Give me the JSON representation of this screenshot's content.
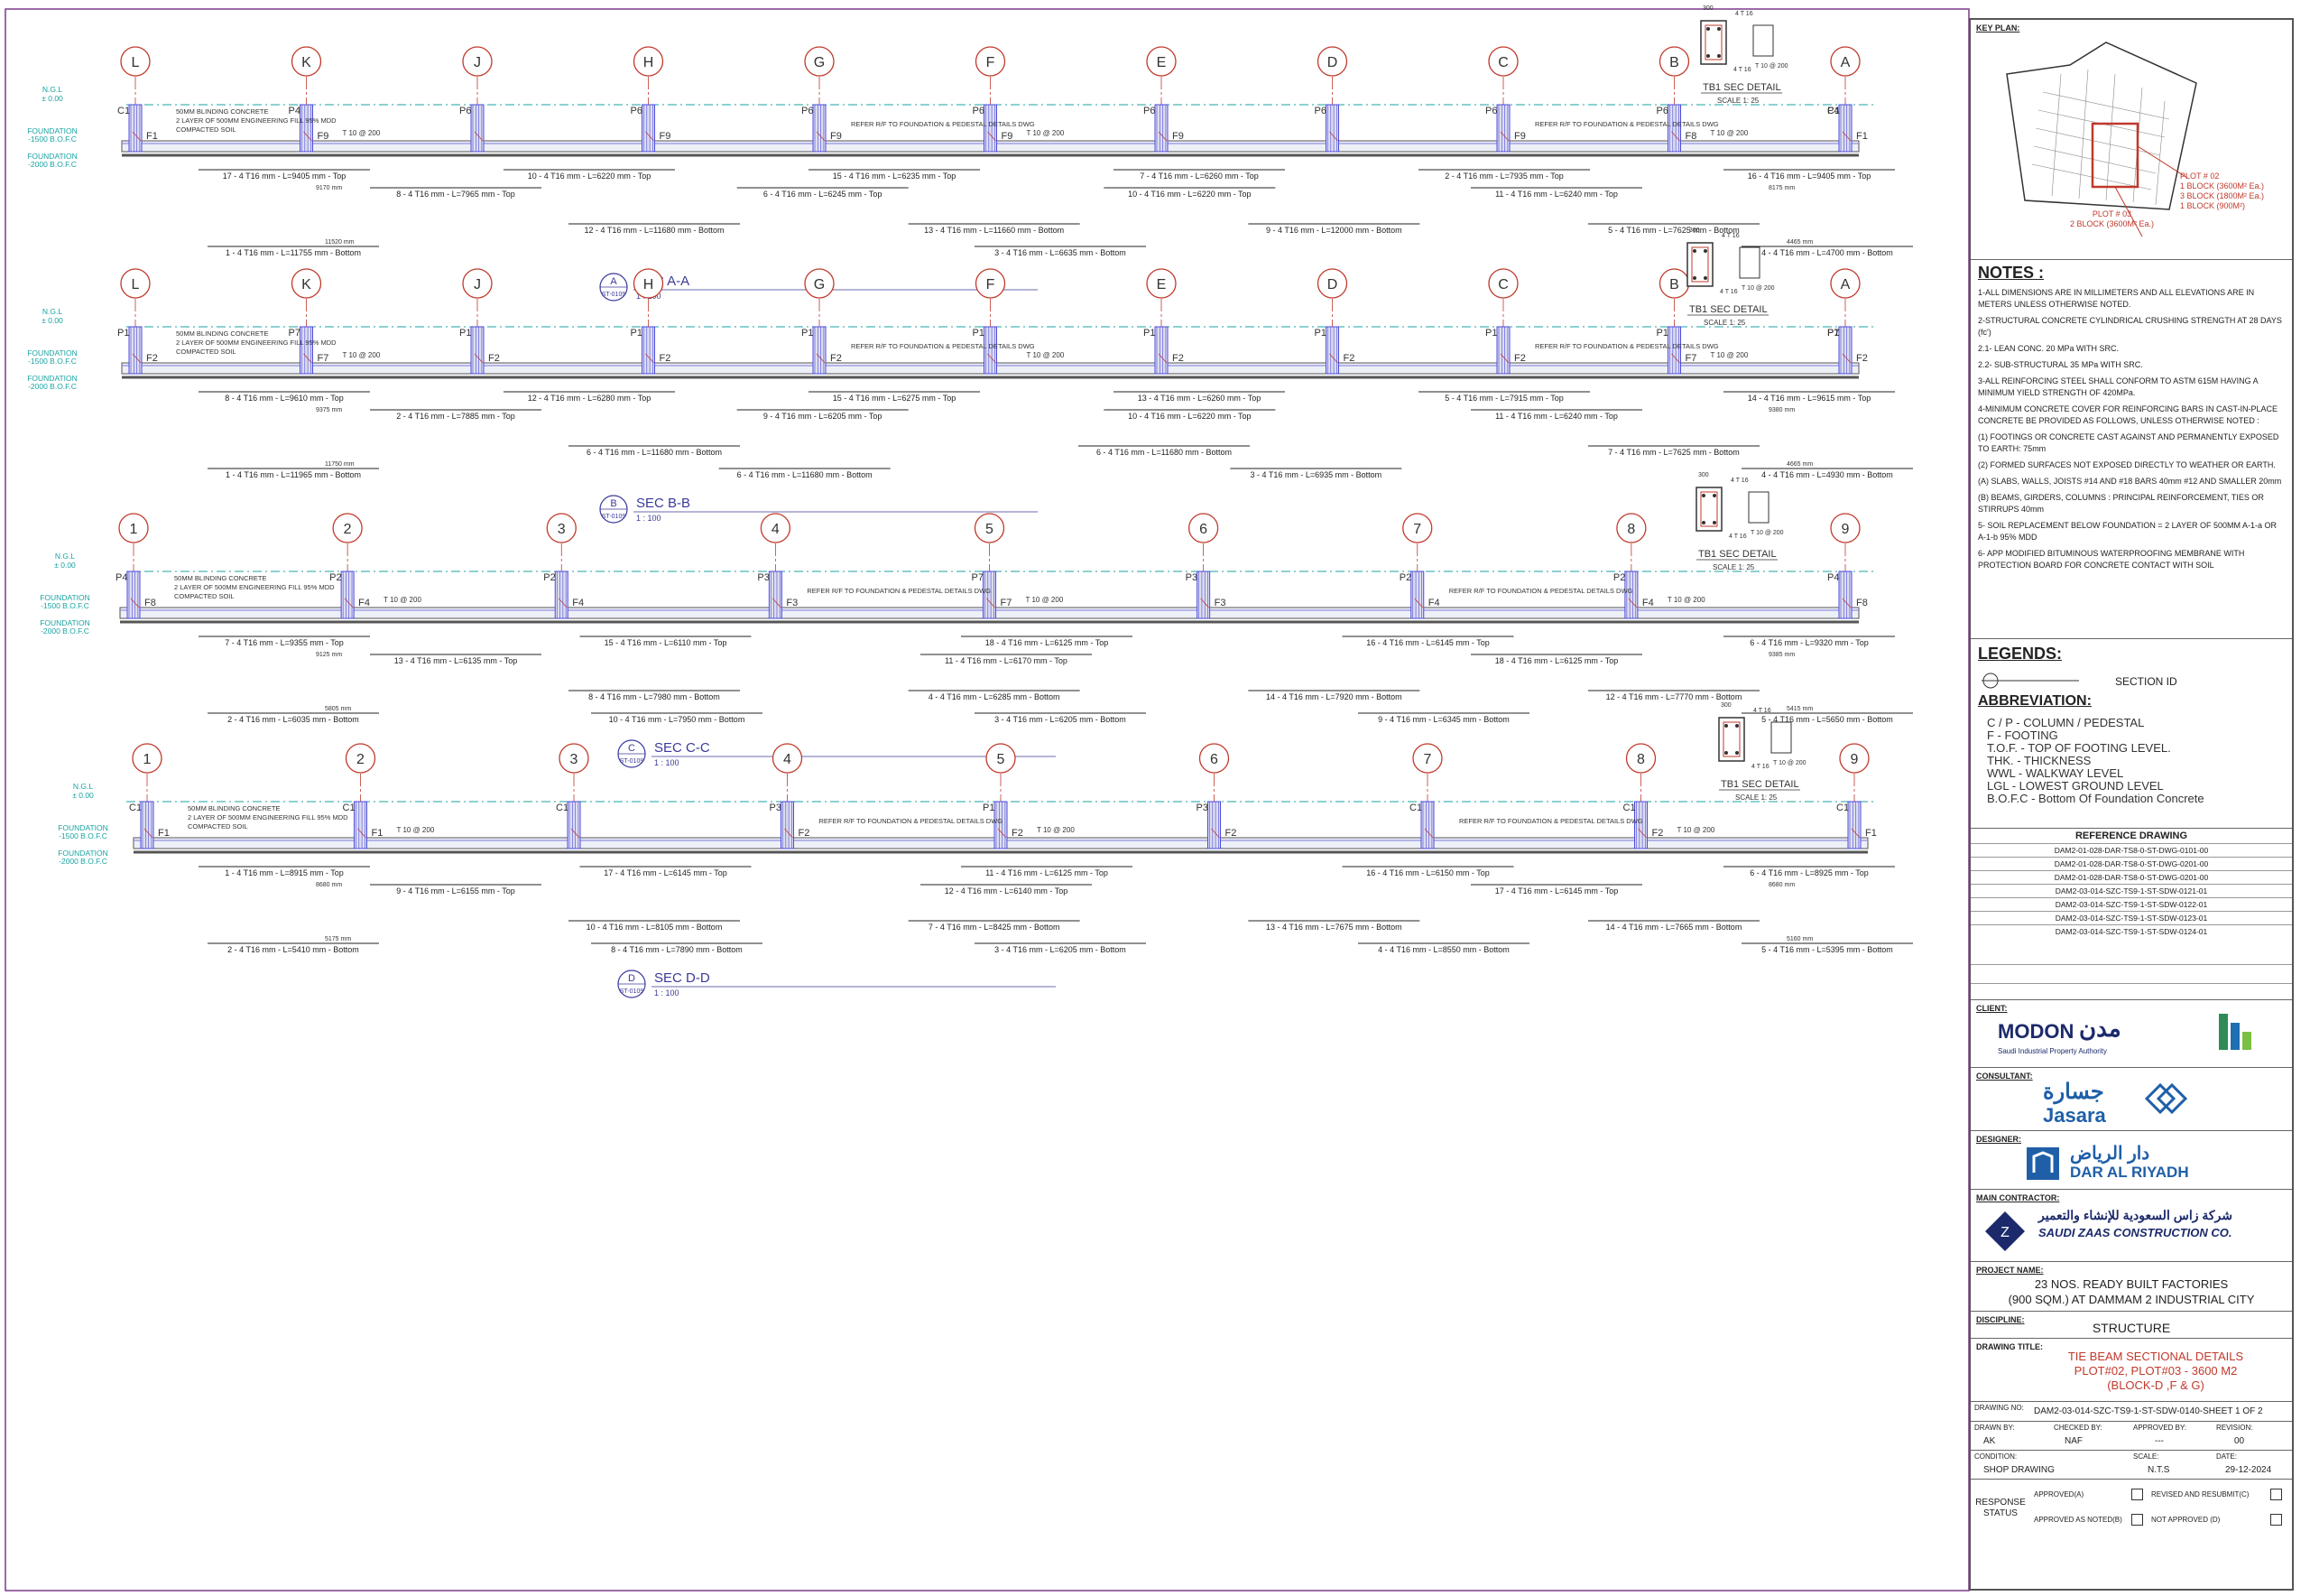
{
  "sections": [
    {
      "id": "A",
      "title": "SEC A-A",
      "ref": "ST-0109",
      "scale": "1 : 100",
      "grids": [
        "L",
        "K",
        "J",
        "H",
        "G",
        "F",
        "E",
        "D",
        "C",
        "B",
        "A"
      ],
      "levels": [
        "N.G.L",
        "± 0.00",
        "FOUNDATION",
        "-1500 B.O.F.C",
        "FOUNDATION",
        "-2000 B.O.F.C"
      ],
      "notes": [
        "50MM BLINDING CONCRETE",
        "2 LAYER OF 500MM ENGINEERING FILL 95% MDD",
        "COMPACTED SOIL",
        "REFER R/F TO FOUNDATION & PEDESTAL DETAILS DWG",
        "REFER R/F TO FOUNDATION & PEDESTAL DETAILS DWG"
      ],
      "top_bars": [
        "17 - 4 T16 mm - L=9405 mm - Top",
        "10 - 4 T16 mm - L=6220 mm - Top",
        "15 - 4 T16 mm - L=6235 mm - Top",
        "7 - 4 T16 mm - L=6260 mm - Top",
        "2 - 4 T16 mm - L=7935 mm - Top",
        "16 - 4 T16 mm - L=9405 mm - Top"
      ],
      "top_bars2": [
        "8 - 4 T16 mm - L=7965 mm - Top",
        "6 - 4 T16 mm - L=6245 mm - Top",
        "10 - 4 T16 mm - L=6220 mm - Top",
        "11 - 4 T16 mm - L=6240 mm - Top"
      ],
      "bot_bars": [
        "12 - 4 T16 mm - L=11680 mm - Bottom",
        "13 - 4 T16 mm - L=11660 mm - Bottom",
        "9 - 4 T16 mm - L=12000 mm - Bottom",
        "5 - 4 T16 mm - L=7625 mm - Bottom"
      ],
      "bot_bars2": [
        "1 - 4 T16 mm - L=11755 mm - Bottom",
        "3 - 4 T16 mm - L=6635 mm - Bottom",
        "4 - 4 T16 mm - L=4700 mm - Bottom"
      ],
      "dims": [
        "9170 mm",
        "8175 mm",
        "11520 mm",
        "4465 mm"
      ],
      "pedestals": [
        "C1",
        "P4",
        "P6",
        "P6",
        "P6",
        "P6",
        "P6",
        "P6",
        "P6",
        "P6",
        "P4",
        "C1"
      ],
      "footings": [
        "F1",
        "F9",
        "F9",
        "F9",
        "F9",
        "F9",
        "F9",
        "F8",
        "F1"
      ],
      "tie": [
        "T 10 @ 200",
        "T 10 @ 200",
        "T 10 @ 200"
      ],
      "sec_detail": {
        "title": "TB1 SEC DETAIL",
        "scale": "SCALE 1: 25",
        "top": "4 T 16",
        "bot": "4 T 16",
        "w": "300",
        "stir": "T 10 @ 200"
      }
    },
    {
      "id": "B",
      "title": "SEC B-B",
      "ref": "ST-0109",
      "scale": "1 : 100",
      "grids": [
        "L",
        "K",
        "J",
        "H",
        "G",
        "F",
        "E",
        "D",
        "C",
        "B",
        "A"
      ],
      "levels": [
        "N.G.L",
        "± 0.00",
        "FOUNDATION",
        "-1500 B.O.F.C",
        "FOUNDATION",
        "-2000 B.O.F.C"
      ],
      "notes": [
        "50MM BLINDING CONCRETE",
        "2 LAYER OF 500MM ENGINEERING FILL 95% MDD",
        "COMPACTED SOIL",
        "REFER R/F TO FOUNDATION & PEDESTAL DETAILS DWG",
        "REFER R/F TO FOUNDATION & PEDESTAL DETAILS DWG"
      ],
      "top_bars": [
        "8 - 4 T16 mm - L=9610 mm - Top",
        "12 - 4 T16 mm - L=6280 mm - Top",
        "15 - 4 T16 mm - L=6275 mm - Top",
        "13 - 4 T16 mm - L=6260 mm - Top",
        "5 - 4 T16 mm - L=7915 mm - Top",
        "14 - 4 T16 mm - L=9615 mm - Top"
      ],
      "top_bars2": [
        "2 - 4 T16 mm - L=7885 mm - Top",
        "9 - 4 T16 mm - L=6205 mm - Top",
        "10 - 4 T16 mm - L=6220 mm - Top",
        "11 - 4 T16 mm - L=6240 mm - Top"
      ],
      "bot_bars": [
        "6 - 4 T16 mm - L=11680 mm - Bottom",
        "6 - 4 T16 mm - L=11680 mm - Bottom",
        "7 - 4 T16 mm - L=7625 mm - Bottom"
      ],
      "bot_bars2": [
        "1 - 4 T16 mm - L=11965 mm - Bottom",
        "6 - 4 T16 mm - L=11680 mm - Bottom",
        "3 - 4 T16 mm - L=6935 mm - Bottom",
        "4 - 4 T16 mm - L=4930 mm - Bottom"
      ],
      "dims": [
        "9375 mm",
        "9380 mm",
        "11750 mm",
        "4665 mm"
      ],
      "pedestals": [
        "P1",
        "P7",
        "P1",
        "P1",
        "P1",
        "P1",
        "P1",
        "P1",
        "P1",
        "P1",
        "P7",
        "P1"
      ],
      "footings": [
        "F2",
        "F7",
        "F2",
        "F2",
        "F2",
        "F2",
        "F2",
        "F2",
        "F7",
        "F2"
      ],
      "tie": [
        "T 10 @ 200",
        "T 10 @ 200",
        "T 10 @ 200"
      ],
      "sec_detail": {
        "title": "TB1 SEC DETAIL",
        "scale": "SCALE 1: 25",
        "top": "4 T 16",
        "bot": "4 T 16",
        "w": "300",
        "stir": "T 10 @ 200"
      }
    },
    {
      "id": "C",
      "title": "SEC C-C",
      "ref": "ST-0109",
      "scale": "1 : 100",
      "grids": [
        "1",
        "2",
        "3",
        "4",
        "5",
        "6",
        "7",
        "8",
        "9"
      ],
      "levels": [
        "N.G.L",
        "± 0.00",
        "FOUNDATION",
        "-1500 B.O.F.C",
        "FOUNDATION",
        "-2000 B.O.F.C"
      ],
      "notes": [
        "50MM BLINDING CONCRETE",
        "2 LAYER OF 500MM ENGINEERING FILL 95% MDD",
        "COMPACTED SOIL",
        "REFER R/F TO FOUNDATION & PEDESTAL DETAILS DWG",
        "REFER R/F TO FOUNDATION & PEDESTAL DETAILS DWG"
      ],
      "top_bars": [
        "7 - 4 T16 mm - L=9355 mm - Top",
        "15 - 4 T16 mm - L=6110 mm - Top",
        "18 - 4 T16 mm - L=6125 mm - Top",
        "16 - 4 T16 mm - L=6145 mm - Top",
        "6 - 4 T16 mm - L=9320 mm - Top"
      ],
      "top_bars2": [
        "13 - 4 T16 mm - L=6135 mm - Top",
        "11 - 4 T16 mm - L=6170 mm - Top",
        "18 - 4 T16 mm - L=6125 mm - Top"
      ],
      "bot_bars": [
        "8 - 4 T16 mm - L=7980 mm - Bottom",
        "4 - 4 T16 mm - L=6285 mm - Bottom",
        "14 - 4 T16 mm - L=7920 mm - Bottom",
        "12 - 4 T16 mm - L=7770 mm - Bottom"
      ],
      "bot_bars2": [
        "2 - 4 T16 mm - L=6035 mm - Bottom",
        "10 - 4 T16 mm - L=7950 mm - Bottom",
        "3 - 4 T16 mm - L=6205 mm - Bottom",
        "9 - 4 T16 mm - L=6345 mm - Bottom",
        "5 - 4 T16 mm - L=5650 mm - Bottom"
      ],
      "dims": [
        "9125 mm",
        "9385 mm",
        "5805 mm",
        "5415 mm"
      ],
      "pedestals": [
        "P4",
        "P2",
        "P2",
        "P3",
        "P7",
        "P3",
        "P2",
        "P2",
        "P4"
      ],
      "footings": [
        "F8",
        "F4",
        "F4",
        "F3",
        "F7",
        "F3",
        "F4",
        "F4",
        "F8"
      ],
      "tie": [
        "T 10 @ 200",
        "T 10 @ 200",
        "T 10 @ 200"
      ],
      "sec_detail": {
        "title": "TB1 SEC DETAIL",
        "scale": "SCALE 1: 25",
        "top": "4 T 16",
        "bot": "4 T 16",
        "w": "300",
        "stir": "T 10 @ 200"
      }
    },
    {
      "id": "D",
      "title": "SEC D-D",
      "ref": "ST-0109",
      "scale": "1 : 100",
      "grids": [
        "1",
        "2",
        "3",
        "4",
        "5",
        "6",
        "7",
        "8",
        "9"
      ],
      "levels": [
        "N.G.L",
        "± 0.00",
        "FOUNDATION",
        "-1500 B.O.F.C",
        "FOUNDATION",
        "-2000 B.O.F.C"
      ],
      "notes": [
        "50MM BLINDING CONCRETE",
        "2 LAYER OF 500MM ENGINEERING FILL 95% MDD",
        "COMPACTED SOIL",
        "REFER R/F TO FOUNDATION & PEDESTAL DETAILS DWG",
        "REFER R/F TO FOUNDATION & PEDESTAL DETAILS DWG"
      ],
      "top_bars": [
        "1 - 4 T16 mm - L=8915 mm - Top",
        "17 - 4 T16 mm - L=6145 mm - Top",
        "11 - 4 T16 mm - L=6125 mm - Top",
        "16 - 4 T16 mm - L=6150 mm - Top",
        "6 - 4 T16 mm - L=8925 mm - Top"
      ],
      "top_bars2": [
        "9 - 4 T16 mm - L=6155 mm - Top",
        "12 - 4 T16 mm - L=6140 mm - Top",
        "17 - 4 T16 mm - L=6145 mm - Top"
      ],
      "bot_bars": [
        "10 - 4 T16 mm - L=8105 mm - Bottom",
        "7 - 4 T16 mm - L=8425 mm - Bottom",
        "13 - 4 T16 mm - L=7675 mm - Bottom",
        "14 - 4 T16 mm - L=7665 mm - Bottom"
      ],
      "bot_bars2": [
        "2 - 4 T16 mm - L=5410 mm - Bottom",
        "8 - 4 T16 mm - L=7890 mm - Bottom",
        "3 - 4 T16 mm - L=6205 mm - Bottom",
        "4 - 4 T16 mm - L=8550 mm - Bottom",
        "5 - 4 T16 mm - L=5395 mm - Bottom"
      ],
      "dims": [
        "8680 mm",
        "8680 mm",
        "5175 mm",
        "5160 mm"
      ],
      "pedestals": [
        "C1",
        "C1",
        "C1",
        "P3",
        "P1",
        "P3",
        "C1",
        "C1",
        "C1"
      ],
      "footings": [
        "F1",
        "F1",
        "F2",
        "F2",
        "F2",
        "F2",
        "F1"
      ],
      "tie": [
        "T 10 @ 200",
        "T 10 @ 200",
        "T 10 @ 200"
      ],
      "sec_detail": {
        "title": "TB1 SEC DETAIL",
        "scale": "SCALE 1: 25",
        "top": "4 T 16",
        "bot": "4 T 16",
        "w": "300",
        "stir": "T 10 @ 200"
      }
    }
  ],
  "title_block": {
    "key_plan_label": "KEY PLAN:",
    "key_plan_notes": [
      "PLOT # 02",
      "1 BLOCK (3600M² Ea.)",
      "3 BLOCK (1800M² Ea.)",
      "1 BLOCK (900M²)",
      "PLOT # 03",
      "2 BLOCK (3600M² Ea.)"
    ],
    "notes_title": "NOTES :",
    "notes": [
      "1-ALL DIMENSIONS ARE IN MILLIMETERS AND ALL ELEVATIONS ARE IN METERS UNLESS OTHERWISE NOTED.",
      "2-STRUCTURAL CONCRETE CYLINDRICAL CRUSHING STRENGTH AT 28 DAYS (fc')",
      "2.1- LEAN CONC. 20 MPa WITH SRC.",
      "2.2- SUB-STRUCTURAL 35 MPa WITH SRC.",
      "3-ALL REINFORCING STEEL SHALL CONFORM TO ASTM 615M HAVING A MINIMUM YIELD STRENGTH OF 420MPa.",
      "4-MINIMUM CONCRETE COVER FOR REINFORCING BARS IN CAST-IN-PLACE CONCRETE BE PROVIDED AS FOLLOWS, UNLESS OTHERWISE NOTED :",
      "(1) FOOTINGS OR CONCRETE CAST AGAINST AND PERMANENTLY EXPOSED TO EARTH: 75mm",
      "(2) FORMED SURFACES NOT EXPOSED DIRECTLY TO WEATHER OR EARTH.",
      "(A) SLABS, WALLS, JOISTS  #14 AND #18 BARS 40mm  #12 AND SMALLER 20mm",
      "(B) BEAMS, GIRDERS, COLUMNS : PRINCIPAL REINFORCEMENT, TIES OR STIRRUPS 40mm",
      "5- SOIL REPLACEMENT BELOW FOUNDATION = 2 LAYER OF 500MM A-1-a OR A-1-b 95% MDD",
      "6- APP MODIFIED BITUMINOUS WATERPROOFING MEMBRANE WITH PROTECTION BOARD FOR CONCRETE CONTACT WITH SOIL"
    ],
    "legends_title": "LEGENDS:",
    "legend_item": "SECTION ID",
    "abbr_title": "ABBREVIATION:",
    "abbr": [
      "C / P - COLUMN / PEDESTAL",
      "F - FOOTING",
      "T.O.F. - TOP OF FOOTING LEVEL.",
      "THK. - THICKNESS",
      "WWL - WALKWAY LEVEL",
      "LGL - LOWEST GROUND LEVEL",
      "B.O.F.C - Bottom Of Foundation Concrete"
    ],
    "ref_title": "REFERENCE DRAWING",
    "refs": [
      "DAM2-01-028-DAR-TS8-0-ST-DWG-0101-00",
      "DAM2-01-028-DAR-TS8-0-ST-DWG-0201-00",
      "DAM2-01-028-DAR-TS8-0-ST-DWG-0201-00",
      "DAM2-03-014-SZC-TS9-1-ST-SDW-0121-01",
      "DAM2-03-014-SZC-TS9-1-ST-SDW-0122-01",
      "DAM2-03-014-SZC-TS9-1-ST-SDW-0123-01",
      "DAM2-03-014-SZC-TS9-1-ST-SDW-0124-01"
    ],
    "client_label": "CLIENT:",
    "client_name": "MODON",
    "client_arabic": "مدن",
    "client_sub": "Saudi Industrial Property Authority",
    "consultant_label": "CONSULTANT:",
    "consultant_name": "Jasara",
    "consultant_arabic": "جسارة",
    "designer_label": "DESIGNER:",
    "designer_name": "DAR AL RIYADH",
    "designer_arabic": "دار الرياض",
    "contractor_label": "MAIN CONTRACTOR:",
    "contractor_name": "SAUDI ZAAS CONSTRUCTION CO.",
    "contractor_arabic": "شركة زاس السعودية للإنشاء والتعمير",
    "project_label": "PROJECT NAME:",
    "project": [
      "23 NOS. READY BUILT FACTORIES",
      "(900 SQM.) AT DAMMAM 2 INDUSTRIAL CITY"
    ],
    "discipline_label": "DISCIPLINE:",
    "discipline": "STRUCTURE",
    "drawing_title_label": "DRAWING TITLE:",
    "drawing_title": [
      "TIE BEAM SECTIONAL DETAILS",
      "PLOT#02, PLOT#03 - 3600 M2",
      "(BLOCK-D ,F & G)"
    ],
    "drawing_no_label": "DRAWING NO:",
    "drawing_no": "DAM2-03-014-SZC-TS9-1-ST-SDW-0140-SHEET 1 OF 2",
    "drawn_by_label": "DRAWN BY:",
    "drawn_by": "AK",
    "checked_label": "CHECKED BY:",
    "checked": "NAF",
    "approved_label": "APPROVED BY:",
    "approved": "---",
    "rev_label": "REVISION:",
    "rev": "00",
    "condition_label": "CONDITION:",
    "condition": "SHOP DRAWING",
    "scale_label": "SCALE:",
    "scale": "N.T.S",
    "date_label": "DATE:",
    "date": "29-12-2024",
    "response_label": "RESPONSE STATUS",
    "responses": [
      "APPROVED(A)",
      "REVISED AND RESUBMIT(C)",
      "APPROVED AS NOTED(B)",
      "NOT APPROVED (D)"
    ]
  },
  "colors": {
    "grid": "#c0392b",
    "pedestal": "#4a4adc",
    "dim": "#222222",
    "level": "#1aa3a3",
    "beam": "#555555",
    "accent": "#c0392b"
  }
}
